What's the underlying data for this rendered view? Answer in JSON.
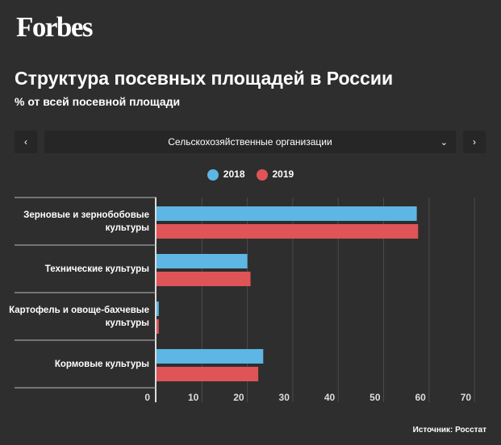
{
  "logo": "Forbes",
  "title": "Структура посевных площадей в России",
  "subtitle": "% от всей посевной площади",
  "nav": {
    "prev": "‹",
    "next": "›",
    "selected": "Сельскохозяйственные организации",
    "chevron": "⌄"
  },
  "source": "Источник: Росстат",
  "chart_data": {
    "type": "bar",
    "orientation": "horizontal",
    "categories": [
      "Зерновые и зернобобовые культуры",
      "Технические культуры",
      "Картофель и овоще-бахчевые культуры",
      "Кормовые культуры"
    ],
    "series": [
      {
        "name": "2018",
        "color": "#5db6e4",
        "values": [
          57.3,
          20.0,
          0.5,
          23.5
        ]
      },
      {
        "name": "2019",
        "color": "#de5457",
        "values": [
          57.6,
          20.7,
          0.5,
          22.4
        ]
      }
    ],
    "xlim": [
      0,
      70
    ],
    "xticks": [
      "0",
      "10",
      "20",
      "30",
      "40",
      "50",
      "60",
      "70"
    ],
    "legend": "top-center",
    "grid": true
  }
}
